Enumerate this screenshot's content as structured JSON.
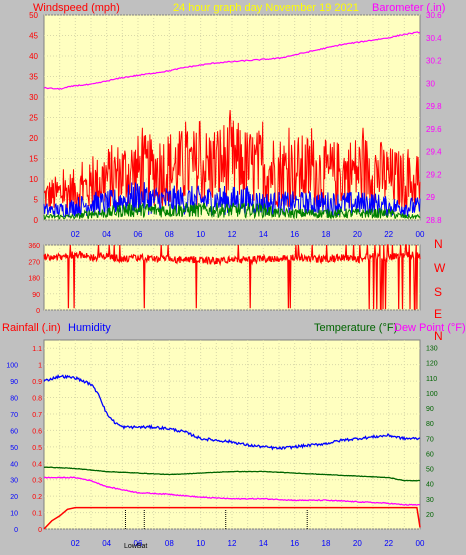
{
  "header": {
    "windspeed_label": "Windspeed (mph)",
    "title": "24 hour graph day   November 19 2021",
    "barometer_label": "Barometer (.in)"
  },
  "lower_header": {
    "rainfall_label": "Rainfall (.in)",
    "humidity_label": "Humidity",
    "temperature_label": "Temperature (°F)",
    "dewpoint_label": "Dew Point (°F)"
  },
  "colors": {
    "background": "#c0c0c0",
    "plot": "#ffffc0",
    "wind_max": "#ff0000",
    "wind_avg": "#0000ff",
    "wind_min": "#008000",
    "barometer": "#ff00ff",
    "axis_left": "#ff0000",
    "axis_x": "#0000ff",
    "humidity": "#0000ff",
    "temperature": "#006400",
    "dewpoint": "#ff00ff",
    "rainfall": "#ff0000",
    "title": "#ffff00"
  },
  "x_ticks": [
    "02",
    "04",
    "06",
    "08",
    "10",
    "12",
    "14",
    "16",
    "18",
    "20",
    "22",
    "00"
  ],
  "annotations": {
    "lowbat_label": "LowBat"
  },
  "chart_data": [
    {
      "type": "line",
      "title": "24 hour graph day   November 19 2021",
      "ylabel": "Windspeed (mph)",
      "y2label": "Barometer (.in)",
      "ylim": [
        0,
        50
      ],
      "y_ticks": [
        "0",
        "5",
        "10",
        "15",
        "20",
        "25",
        "30",
        "35",
        "40",
        "45",
        "50"
      ],
      "y2lim": [
        28.8,
        30.6
      ],
      "y2_ticks": [
        "28.8",
        "29",
        "29.2",
        "29.4",
        "29.6",
        "29.8",
        "30",
        "30.2",
        "30.4",
        "30.6"
      ],
      "x_hours": [
        0,
        24
      ],
      "series": [
        {
          "name": "Wind max",
          "axis": "left",
          "color": "#ff0000",
          "x": [
            0,
            1,
            2,
            3,
            4,
            5,
            6,
            7,
            8,
            9,
            10,
            11,
            12,
            13,
            14,
            15,
            16,
            17,
            18,
            19,
            20,
            21,
            22,
            23,
            24
          ],
          "values": [
            7,
            8,
            9,
            10,
            13,
            14,
            15,
            15,
            16,
            16,
            16,
            17,
            18,
            16,
            16,
            15,
            15,
            15,
            14,
            14,
            15,
            15,
            13,
            12,
            10
          ]
        },
        {
          "name": "Wind avg",
          "axis": "left",
          "color": "#0000ff",
          "x": [
            0,
            1,
            2,
            3,
            4,
            5,
            6,
            7,
            8,
            9,
            10,
            11,
            12,
            13,
            14,
            15,
            16,
            17,
            18,
            19,
            20,
            21,
            22,
            23,
            24
          ],
          "values": [
            3,
            3,
            4,
            5,
            5,
            6,
            7,
            6,
            6,
            6,
            6,
            6,
            6,
            6,
            5,
            5,
            5,
            5,
            5,
            5,
            5,
            5,
            4,
            4,
            4
          ]
        },
        {
          "name": "Wind min",
          "axis": "left",
          "color": "#008000",
          "x": [
            0,
            1,
            2,
            3,
            4,
            5,
            6,
            7,
            8,
            9,
            10,
            11,
            12,
            13,
            14,
            15,
            16,
            17,
            18,
            19,
            20,
            21,
            22,
            23,
            24
          ],
          "values": [
            1,
            1,
            1,
            2,
            2,
            3,
            3,
            3,
            3,
            3,
            3,
            3,
            3,
            3,
            3,
            2,
            2,
            2,
            2,
            2,
            2,
            2,
            2,
            1,
            1
          ]
        },
        {
          "name": "Barometer",
          "axis": "right",
          "color": "#ff00ff",
          "x": [
            0,
            1,
            2,
            3,
            4,
            5,
            6,
            7,
            8,
            9,
            10,
            11,
            12,
            13,
            14,
            15,
            16,
            17,
            18,
            19,
            20,
            21,
            22,
            23,
            24
          ],
          "values": [
            29.96,
            29.95,
            29.98,
            29.99,
            30.02,
            30.05,
            30.07,
            30.09,
            30.11,
            30.14,
            30.16,
            30.18,
            30.19,
            30.2,
            30.21,
            30.22,
            30.25,
            30.28,
            30.31,
            30.34,
            30.36,
            30.38,
            30.4,
            30.43,
            30.45
          ]
        }
      ]
    },
    {
      "type": "line",
      "ylabel": "Wind direction",
      "ylim": [
        0,
        360
      ],
      "y_ticks": [
        "0",
        "90",
        "180",
        "270",
        "360"
      ],
      "y2_labels": [
        "N",
        "W",
        "S",
        "E",
        "N"
      ],
      "series": [
        {
          "name": "Wind direction",
          "color": "#ff0000",
          "x": [
            0,
            1,
            2,
            3,
            4,
            5,
            6,
            7,
            8,
            9,
            10,
            11,
            12,
            13,
            14,
            15,
            16,
            17,
            18,
            19,
            20,
            21,
            22,
            23,
            24
          ],
          "values": [
            300,
            290,
            310,
            290,
            300,
            280,
            290,
            285,
            280,
            275,
            280,
            270,
            280,
            275,
            285,
            285,
            290,
            285,
            280,
            290,
            280,
            300,
            290,
            310,
            300
          ]
        }
      ]
    },
    {
      "type": "line",
      "ylabel": "Rainfall (.in)",
      "y_secondary_label": "Humidity",
      "y2label": "Temperature (°F)",
      "y3label": "Dew Point (°F)",
      "ylim": [
        0,
        1.15
      ],
      "y_ticks": [
        "0",
        "0.1",
        "0.2",
        "0.3",
        "0.4",
        "0.5",
        "0.6",
        "0.7",
        "0.8",
        "0.9",
        "1",
        "1.1"
      ],
      "humidity_ticks": [
        "0",
        "10",
        "20",
        "30",
        "40",
        "50",
        "60",
        "70",
        "80",
        "90",
        "100"
      ],
      "y2lim": [
        10,
        135
      ],
      "y2_ticks": [
        "20",
        "30",
        "40",
        "50",
        "60",
        "70",
        "80",
        "90",
        "100",
        "110",
        "120",
        "130"
      ],
      "series": [
        {
          "name": "Humidity",
          "axis": "humidity",
          "color": "#0000ff",
          "x": [
            0,
            1,
            2,
            3,
            3.5,
            4,
            4.5,
            5,
            6,
            7,
            8,
            9,
            10,
            11,
            12,
            13,
            14,
            15,
            16,
            17,
            18,
            19,
            20,
            21,
            22,
            23,
            24
          ],
          "values": [
            90,
            93,
            92,
            88,
            82,
            70,
            65,
            62,
            62,
            62,
            61,
            59,
            55,
            54,
            53,
            51,
            50,
            49,
            50,
            51,
            52,
            54,
            55,
            56,
            57,
            55,
            55
          ]
        },
        {
          "name": "Temperature",
          "axis": "right",
          "color": "#006400",
          "x": [
            0,
            2,
            4,
            6,
            8,
            10,
            12,
            14,
            16,
            18,
            20,
            22,
            23,
            24
          ],
          "values": [
            51,
            50,
            48,
            47,
            46,
            47,
            48,
            48,
            47,
            46,
            45,
            44,
            42,
            42
          ]
        },
        {
          "name": "Dew Point",
          "axis": "right",
          "color": "#ff00ff",
          "x": [
            0,
            2,
            3,
            4,
            5,
            6,
            8,
            10,
            12,
            14,
            16,
            18,
            20,
            22,
            23,
            24
          ],
          "values": [
            44,
            44,
            42,
            38,
            36,
            34,
            33,
            31,
            30,
            30,
            29,
            29,
            28,
            27,
            26,
            26
          ]
        },
        {
          "name": "Rainfall",
          "axis": "left",
          "color": "#ff0000",
          "x": [
            0,
            0.5,
            1,
            1.5,
            2,
            4,
            6,
            8,
            10,
            12,
            14,
            16,
            18,
            20,
            22,
            23,
            23.8,
            24
          ],
          "values": [
            0,
            0.05,
            0.08,
            0.12,
            0.13,
            0.13,
            0.13,
            0.13,
            0.13,
            0.13,
            0.13,
            0.13,
            0.13,
            0.13,
            0.13,
            0.13,
            0.13,
            0.01
          ]
        }
      ]
    }
  ]
}
